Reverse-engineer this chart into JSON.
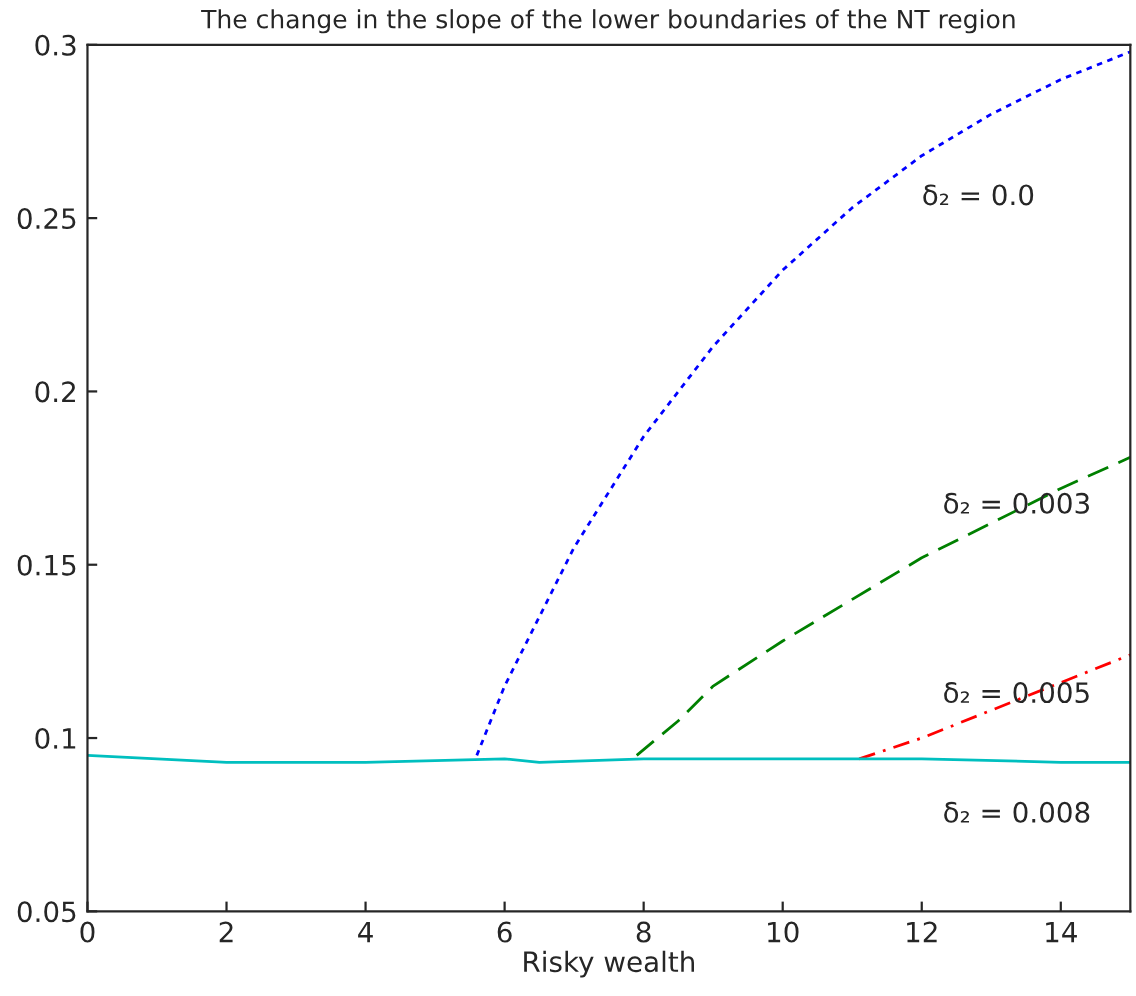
{
  "chart_data": {
    "type": "line",
    "title": "The change in the slope of the lower boundaries of the NT region",
    "xlabel": "Risky wealth",
    "xlim": [
      0,
      15
    ],
    "xticks": [
      0,
      2,
      4,
      6,
      8,
      10,
      12,
      14
    ],
    "ylim": [
      0.05,
      0.3
    ],
    "yticks": [
      0.05,
      0.1,
      0.15,
      0.2,
      0.25,
      0.3
    ],
    "grid": false,
    "legend": false,
    "series": [
      {
        "name": "δ₂ = 0.0",
        "color": "#0000ff",
        "line_style": "dotted",
        "x": [
          5.6,
          6,
          7,
          8,
          9,
          10,
          11,
          12,
          13,
          14,
          15
        ],
        "values": [
          0.095,
          0.115,
          0.155,
          0.187,
          0.213,
          0.235,
          0.253,
          0.268,
          0.28,
          0.29,
          0.298
        ]
      },
      {
        "name": "δ₂ = 0.003",
        "color": "#008000",
        "line_style": "dashed",
        "x": [
          7.9,
          8.5,
          9,
          10,
          11,
          12,
          13,
          14,
          15
        ],
        "values": [
          0.095,
          0.105,
          0.115,
          0.128,
          0.14,
          0.152,
          0.162,
          0.172,
          0.181
        ]
      },
      {
        "name": "δ₂ = 0.005",
        "color": "#ff0000",
        "line_style": "dashdot",
        "x": [
          11.1,
          12,
          13,
          14,
          15
        ],
        "values": [
          0.094,
          0.1,
          0.108,
          0.116,
          0.124
        ]
      },
      {
        "name": "δ₂ = 0.008",
        "color": "#00bfbf",
        "line_style": "solid",
        "x": [
          0,
          1,
          2,
          4,
          6,
          6.5,
          8,
          10,
          12,
          14,
          15
        ],
        "values": [
          0.095,
          0.094,
          0.093,
          0.093,
          0.094,
          0.093,
          0.094,
          0.094,
          0.094,
          0.093,
          0.093
        ]
      }
    ]
  }
}
